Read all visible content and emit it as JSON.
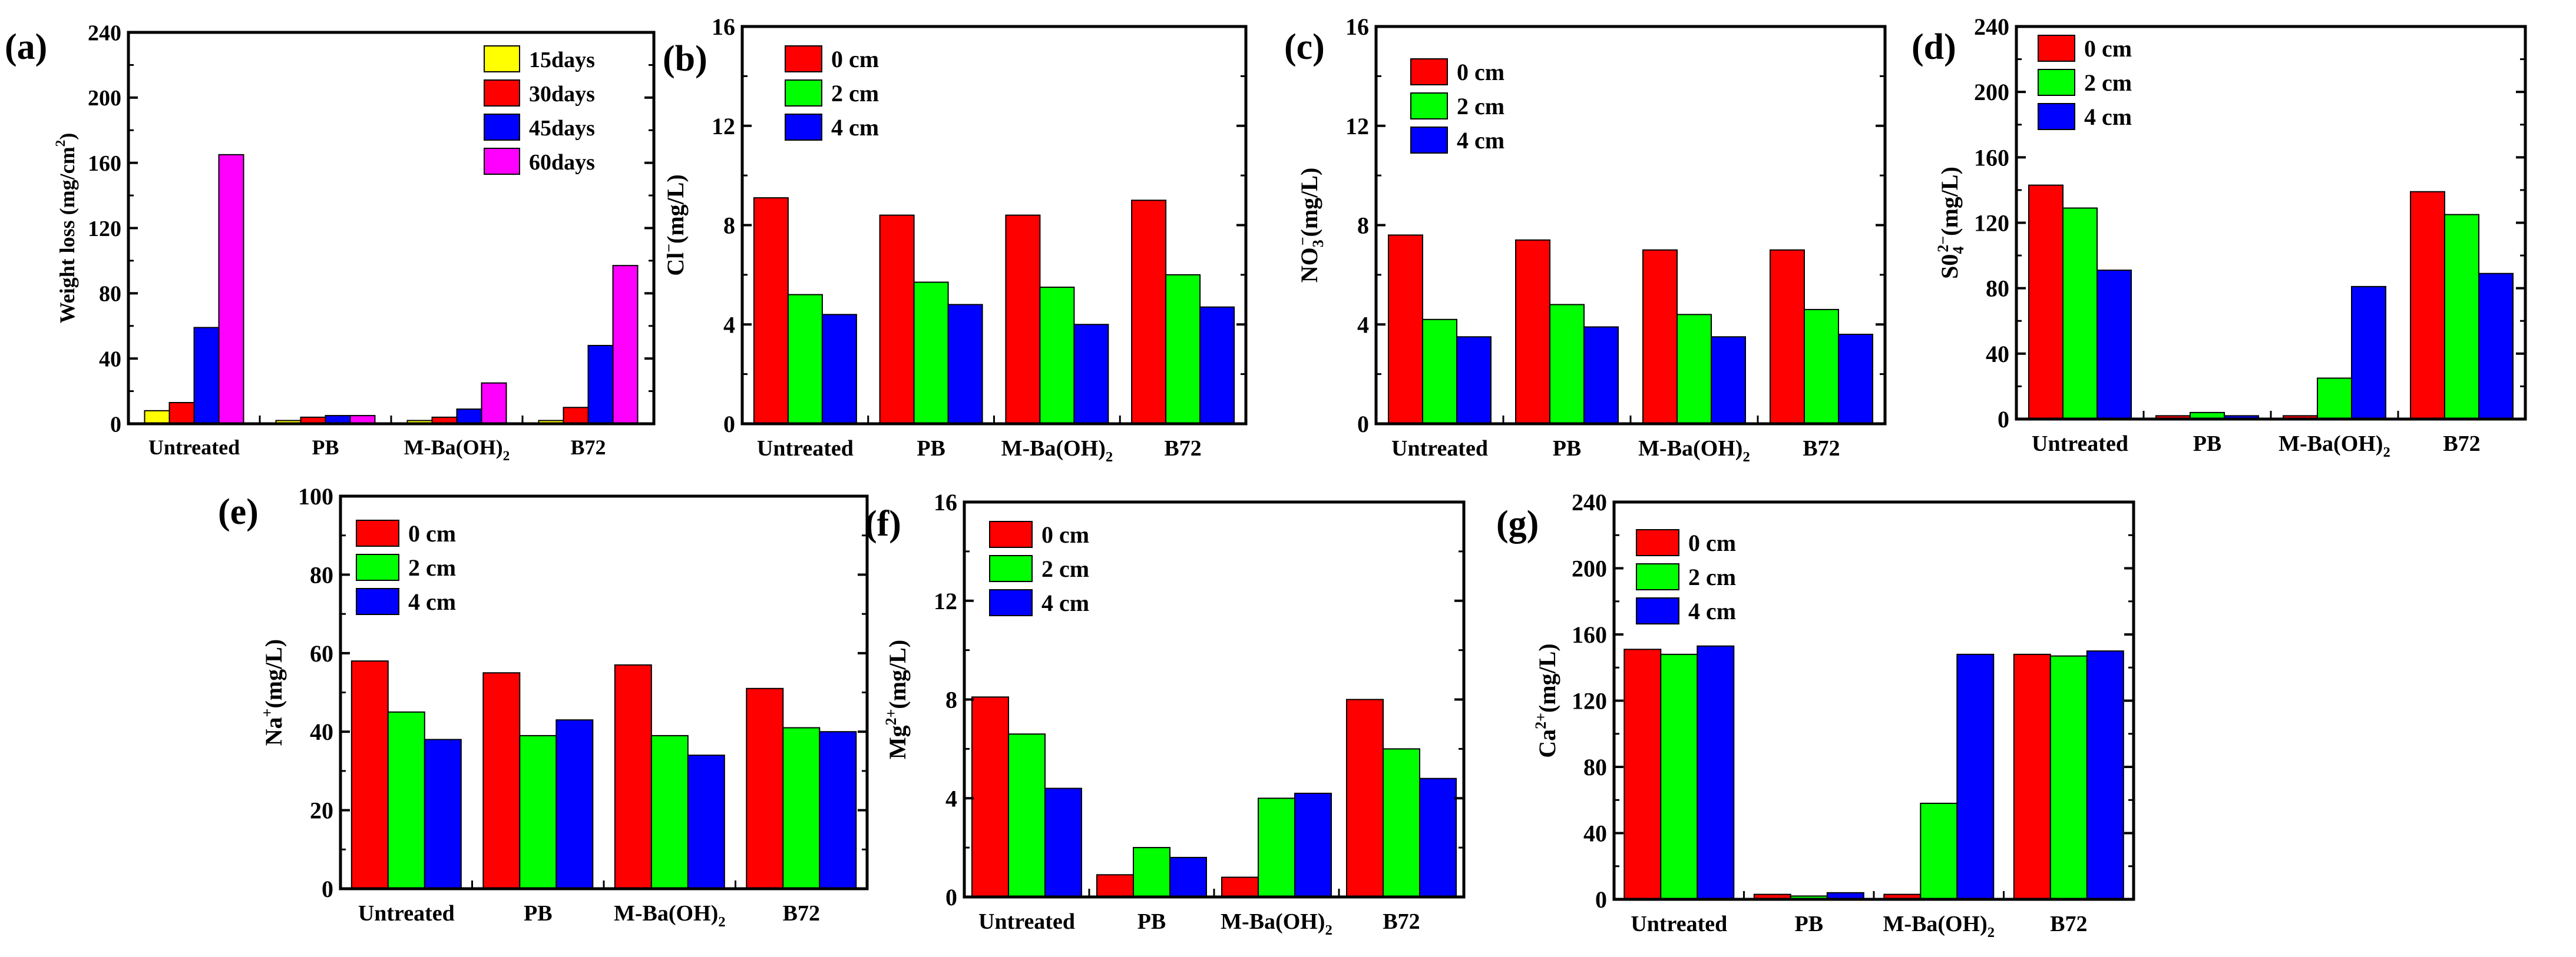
{
  "chart_data": [
    {
      "type": "bar",
      "panel_label": "(a)",
      "title": "",
      "xlabel": "",
      "ylabel": "Weight loss (mg/cm",
      "ylabel_sup": "2",
      "ylabel_tail": ")",
      "ylim": [
        0,
        240
      ],
      "yticks": [
        "0",
        "40",
        "80",
        "120",
        "160",
        "200",
        "240"
      ],
      "categories": [
        "Untreated",
        "PB",
        "M-Ba(OH)",
        "B72"
      ],
      "category_subscripts": [
        "",
        "",
        "2",
        ""
      ],
      "series": [
        {
          "name": "15days",
          "color": "#ffff00",
          "values": [
            8,
            2,
            2,
            2
          ]
        },
        {
          "name": "30days",
          "color": "#ff0000",
          "values": [
            13,
            4,
            4,
            10
          ]
        },
        {
          "name": "45days",
          "color": "#0000ff",
          "values": [
            59,
            5,
            9,
            48
          ]
        },
        {
          "name": "60days",
          "color": "#ff00ff",
          "values": [
            165,
            5,
            25,
            97
          ]
        }
      ],
      "legend_position": "top-right"
    },
    {
      "type": "bar",
      "panel_label": "(b)",
      "title": "",
      "xlabel": "",
      "ylabel": "Cl",
      "ylabel_sup": "−",
      "ylabel_tail": "(mg/L)",
      "ylim": [
        0,
        16
      ],
      "yticks": [
        "0",
        "4",
        "8",
        "12",
        "16"
      ],
      "categories": [
        "Untreated",
        "PB",
        "M-Ba(OH)",
        "B72"
      ],
      "category_subscripts": [
        "",
        "",
        "2",
        ""
      ],
      "series": [
        {
          "name": "0 cm",
          "color": "#ff0000",
          "values": [
            9.1,
            8.4,
            8.4,
            9.0
          ]
        },
        {
          "name": "2 cm",
          "color": "#00ff00",
          "values": [
            5.2,
            5.7,
            5.5,
            6.0
          ]
        },
        {
          "name": "4 cm",
          "color": "#0000ff",
          "values": [
            4.4,
            4.8,
            4.0,
            4.7
          ]
        }
      ],
      "legend_position": "top-left"
    },
    {
      "type": "bar",
      "panel_label": "(c)",
      "title": "",
      "xlabel": "",
      "ylabel": "NO",
      "ylabel_sub": "3",
      "ylabel_sup": "−",
      "ylabel_tail": "(mg/L)",
      "ylim": [
        0,
        16
      ],
      "yticks": [
        "0",
        "4",
        "8",
        "12",
        "16"
      ],
      "categories": [
        "Untreated",
        "PB",
        "M-Ba(OH)",
        "B72"
      ],
      "category_subscripts": [
        "",
        "",
        "2",
        ""
      ],
      "series": [
        {
          "name": "0 cm",
          "color": "#ff0000",
          "values": [
            7.6,
            7.4,
            7.0,
            7.0
          ]
        },
        {
          "name": "2 cm",
          "color": "#00ff00",
          "values": [
            4.2,
            4.8,
            4.4,
            4.6
          ]
        },
        {
          "name": "4 cm",
          "color": "#0000ff",
          "values": [
            3.5,
            3.9,
            3.5,
            3.6
          ]
        }
      ],
      "legend_position": "top-left"
    },
    {
      "type": "bar",
      "panel_label": "(d)",
      "title": "",
      "xlabel": "",
      "ylabel": "S0",
      "ylabel_sub": "4",
      "ylabel_sup": "2−",
      "ylabel_tail": "(mg/L)",
      "ylim": [
        0,
        240
      ],
      "yticks": [
        "0",
        "40",
        "80",
        "120",
        "160",
        "200",
        "240"
      ],
      "categories": [
        "Untreated",
        "PB",
        "M-Ba(OH)",
        "B72"
      ],
      "category_subscripts": [
        "",
        "",
        "2",
        ""
      ],
      "series": [
        {
          "name": "0 cm",
          "color": "#ff0000",
          "values": [
            143,
            2,
            2,
            139
          ]
        },
        {
          "name": "2 cm",
          "color": "#00ff00",
          "values": [
            129,
            4,
            25,
            125
          ]
        },
        {
          "name": "4 cm",
          "color": "#0000ff",
          "values": [
            91,
            2,
            81,
            89
          ]
        }
      ],
      "legend_position": "top-left"
    },
    {
      "type": "bar",
      "panel_label": "(e)",
      "title": "",
      "xlabel": "",
      "ylabel": "Na",
      "ylabel_sup": "+",
      "ylabel_tail": "(mg/L)",
      "ylim": [
        0,
        100
      ],
      "yticks": [
        "0",
        "20",
        "40",
        "60",
        "80",
        "100"
      ],
      "categories": [
        "Untreated",
        "PB",
        "M-Ba(OH)",
        "B72"
      ],
      "category_subscripts": [
        "",
        "",
        "2",
        ""
      ],
      "series": [
        {
          "name": "0 cm",
          "color": "#ff0000",
          "values": [
            58,
            55,
            57,
            51
          ]
        },
        {
          "name": "2 cm",
          "color": "#00ff00",
          "values": [
            45,
            39,
            39,
            41
          ]
        },
        {
          "name": "4 cm",
          "color": "#0000ff",
          "values": [
            38,
            43,
            34,
            40
          ]
        }
      ],
      "legend_position": "top-left"
    },
    {
      "type": "bar",
      "panel_label": "(f)",
      "title": "",
      "xlabel": "",
      "ylabel": "Mg",
      "ylabel_sup": "2+",
      "ylabel_tail": "(mg/L)",
      "ylim": [
        0,
        16
      ],
      "yticks": [
        "0",
        "4",
        "8",
        "12",
        "16"
      ],
      "categories": [
        "Untreated",
        "PB",
        "M-Ba(OH)",
        "B72"
      ],
      "category_subscripts": [
        "",
        "",
        "2",
        ""
      ],
      "series": [
        {
          "name": "0 cm",
          "color": "#ff0000",
          "values": [
            8.1,
            0.9,
            0.8,
            8.0
          ]
        },
        {
          "name": "2 cm",
          "color": "#00ff00",
          "values": [
            6.6,
            2.0,
            4.0,
            6.0
          ]
        },
        {
          "name": "4 cm",
          "color": "#0000ff",
          "values": [
            4.4,
            1.6,
            4.2,
            4.8
          ]
        }
      ],
      "legend_position": "top-left"
    },
    {
      "type": "bar",
      "panel_label": "(g)",
      "title": "",
      "xlabel": "",
      "ylabel": "Ca",
      "ylabel_sup": "2+",
      "ylabel_tail": "(mg/L)",
      "ylim": [
        0,
        240
      ],
      "yticks": [
        "0",
        "40",
        "80",
        "120",
        "160",
        "200",
        "240"
      ],
      "categories": [
        "Untreated",
        "PB",
        "M-Ba(OH)",
        "B72"
      ],
      "category_subscripts": [
        "",
        "",
        "2",
        ""
      ],
      "series": [
        {
          "name": "0 cm",
          "color": "#ff0000",
          "values": [
            151,
            3,
            3,
            148
          ]
        },
        {
          "name": "2 cm",
          "color": "#00ff00",
          "values": [
            148,
            2,
            58,
            147
          ]
        },
        {
          "name": "4 cm",
          "color": "#0000ff",
          "values": [
            153,
            4,
            148,
            150
          ]
        }
      ],
      "legend_position": "top-left"
    }
  ]
}
